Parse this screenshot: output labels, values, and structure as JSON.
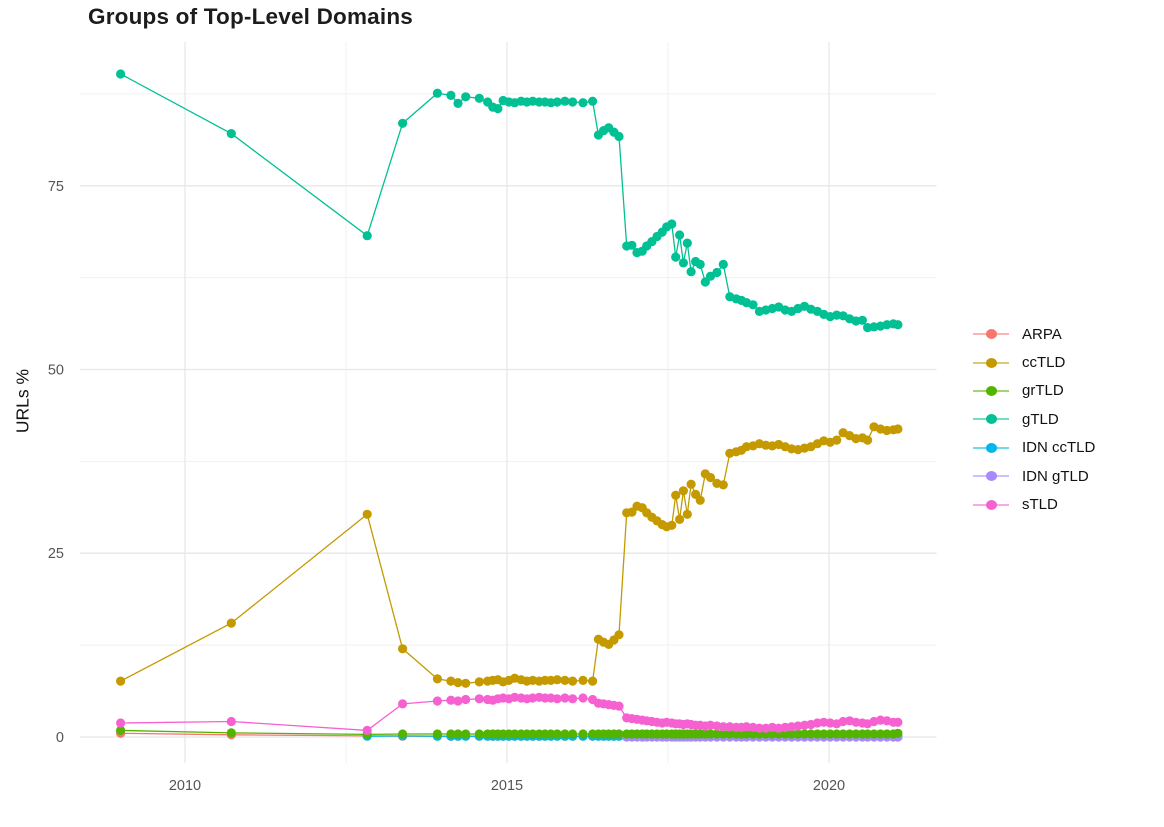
{
  "chart_data": {
    "type": "line",
    "title": "Groups of Top-Level Domains",
    "xlabel": "",
    "ylabel": "URLs %",
    "grid": true,
    "legend_position": "right",
    "x_domain": [
      2008.37,
      2021.67
    ],
    "y_domain": [
      -3.54,
      94.56
    ],
    "x_ticks": {
      "major": [
        2010,
        2015,
        2020
      ],
      "minor": [
        2012.5,
        2017.5
      ],
      "labels": [
        "2010",
        "2015",
        "2020"
      ]
    },
    "y_ticks": {
      "major": [
        0,
        25,
        50,
        75
      ],
      "minor": [
        12.5,
        37.5,
        62.5,
        87.5
      ],
      "labels": [
        "0",
        "25",
        "50",
        "75"
      ]
    },
    "x": [
      2009.0,
      2010.72,
      2012.83,
      2013.38,
      2013.92,
      2014.13,
      2014.24,
      2014.36,
      2014.57,
      2014.7,
      2014.78,
      2014.86,
      2014.94,
      2015.03,
      2015.12,
      2015.22,
      2015.31,
      2015.4,
      2015.5,
      2015.59,
      2015.68,
      2015.78,
      2015.9,
      2016.02,
      2016.18,
      2016.33,
      2016.42,
      2016.5,
      2016.58,
      2016.66,
      2016.74,
      2016.86,
      2016.94,
      2017.02,
      2017.1,
      2017.17,
      2017.25,
      2017.33,
      2017.41,
      2017.48,
      2017.56,
      2017.62,
      2017.68,
      2017.74,
      2017.8,
      2017.86,
      2017.93,
      2018.0,
      2018.08,
      2018.16,
      2018.26,
      2018.36,
      2018.46,
      2018.56,
      2018.64,
      2018.72,
      2018.82,
      2018.92,
      2019.02,
      2019.12,
      2019.22,
      2019.32,
      2019.42,
      2019.52,
      2019.62,
      2019.72,
      2019.82,
      2019.92,
      2020.02,
      2020.12,
      2020.22,
      2020.32,
      2020.42,
      2020.52,
      2020.6,
      2020.7,
      2020.8,
      2020.9,
      2021.0,
      2021.07
    ],
    "draw_order": [
      "ARPA",
      "IDN ccTLD",
      "IDN gTLD",
      "grTLD",
      "ccTLD",
      "gTLD",
      "sTLD"
    ],
    "series": [
      {
        "name": "ARPA",
        "color": "#F8766D",
        "y": [
          0.5,
          0.3,
          0.15,
          0.1,
          0.1,
          0.1,
          0.1,
          0.1,
          0.1,
          0.1,
          0.1,
          0.1,
          0.1,
          0.1,
          0.1,
          0.1,
          0.1,
          0.1,
          0.1,
          0.1,
          0.1,
          0.1,
          0.1,
          0.1,
          0.1,
          0.1,
          0.1,
          0.1,
          0.1,
          0.1,
          0.1,
          0.1,
          0.1,
          0.1,
          0.1,
          0.1,
          0.1,
          0.1,
          0.1,
          0.1,
          0.1,
          0.1,
          0.1,
          0.1,
          0.1,
          0.1,
          0.1,
          0.1,
          0.1,
          0.1,
          0.1,
          0.1,
          0.1,
          0.1,
          0.1,
          0.1,
          0.1,
          0.1,
          0.1,
          0.1,
          0.1,
          0.1,
          0.1,
          0.1,
          0.1,
          0.1,
          0.1,
          0.1,
          0.1,
          0.1,
          0.1,
          0.1,
          0.1,
          0.1,
          0.1,
          0.1,
          0.1,
          0.1,
          0.1,
          0.1
        ]
      },
      {
        "name": "ccTLD",
        "color": "#C49A00",
        "y": [
          7.6,
          15.5,
          30.3,
          12.0,
          7.9,
          7.6,
          7.4,
          7.3,
          7.5,
          7.6,
          7.7,
          7.8,
          7.5,
          7.7,
          8.0,
          7.8,
          7.6,
          7.7,
          7.6,
          7.7,
          7.7,
          7.8,
          7.7,
          7.6,
          7.7,
          7.6,
          13.3,
          12.9,
          12.6,
          13.2,
          13.9,
          30.5,
          30.6,
          31.4,
          31.2,
          30.5,
          29.9,
          29.4,
          28.9,
          28.6,
          28.8,
          32.9,
          29.6,
          33.5,
          30.3,
          34.4,
          33.0,
          32.2,
          35.8,
          35.3,
          34.5,
          34.3,
          38.6,
          38.8,
          39.0,
          39.5,
          39.6,
          39.9,
          39.7,
          39.6,
          39.8,
          39.5,
          39.2,
          39.1,
          39.3,
          39.5,
          39.9,
          40.3,
          40.1,
          40.4,
          41.4,
          41.0,
          40.6,
          40.7,
          40.4,
          42.2,
          41.9,
          41.7,
          41.8,
          41.9
        ]
      },
      {
        "name": "grTLD",
        "color": "#53B400",
        "y": [
          0.9,
          0.55,
          0.35,
          0.4,
          0.4,
          0.4,
          0.4,
          0.4,
          0.4,
          0.4,
          0.4,
          0.4,
          0.4,
          0.4,
          0.4,
          0.4,
          0.4,
          0.4,
          0.4,
          0.4,
          0.4,
          0.4,
          0.4,
          0.4,
          0.4,
          0.4,
          0.4,
          0.4,
          0.4,
          0.4,
          0.4,
          0.4,
          0.4,
          0.4,
          0.4,
          0.4,
          0.4,
          0.4,
          0.4,
          0.4,
          0.4,
          0.4,
          0.4,
          0.4,
          0.4,
          0.4,
          0.4,
          0.4,
          0.4,
          0.4,
          0.4,
          0.4,
          0.4,
          0.4,
          0.4,
          0.4,
          0.4,
          0.4,
          0.4,
          0.4,
          0.4,
          0.4,
          0.4,
          0.4,
          0.4,
          0.4,
          0.4,
          0.4,
          0.4,
          0.4,
          0.4,
          0.4,
          0.4,
          0.4,
          0.4,
          0.4,
          0.4,
          0.4,
          0.4,
          0.5
        ]
      },
      {
        "name": "gTLD",
        "color": "#00C094",
        "y": [
          90.2,
          82.1,
          68.2,
          83.5,
          87.6,
          87.3,
          86.2,
          87.1,
          86.9,
          86.4,
          85.7,
          85.5,
          86.6,
          86.4,
          86.3,
          86.5,
          86.4,
          86.5,
          86.4,
          86.4,
          86.3,
          86.4,
          86.5,
          86.4,
          86.3,
          86.5,
          81.9,
          82.5,
          82.9,
          82.3,
          81.7,
          66.8,
          66.9,
          65.9,
          66.1,
          66.8,
          67.4,
          68.1,
          68.7,
          69.4,
          69.8,
          65.3,
          68.3,
          64.5,
          67.2,
          63.3,
          64.7,
          64.3,
          61.9,
          62.7,
          63.2,
          64.3,
          59.9,
          59.6,
          59.4,
          59.1,
          58.8,
          57.9,
          58.1,
          58.3,
          58.5,
          58.1,
          57.9,
          58.3,
          58.6,
          58.2,
          57.9,
          57.5,
          57.2,
          57.4,
          57.3,
          56.9,
          56.6,
          56.7,
          55.7,
          55.8,
          55.9,
          56.1,
          56.2,
          56.1
        ]
      },
      {
        "name": "IDN ccTLD",
        "color": "#00B6EB",
        "y": [
          null,
          null,
          0.1,
          0.15,
          0.1,
          0.1,
          0.1,
          0.1,
          0.1,
          0.1,
          0.1,
          0.1,
          0.1,
          0.1,
          0.1,
          0.1,
          0.1,
          0.1,
          0.1,
          0.1,
          0.1,
          0.1,
          0.1,
          0.1,
          0.1,
          0.1,
          0.1,
          0.1,
          0.1,
          0.1,
          0.1,
          0.1,
          0.1,
          0.1,
          0.1,
          0.1,
          0.1,
          0.1,
          0.1,
          0.1,
          0.1,
          0.1,
          0.1,
          0.1,
          0.1,
          0.1,
          0.1,
          0.1,
          0.1,
          0.1,
          0.1,
          0.1,
          0.1,
          0.1,
          0.1,
          0.1,
          0.1,
          0.1,
          0.1,
          0.1,
          0.1,
          0.1,
          0.1,
          0.1,
          0.1,
          0.1,
          0.1,
          0.1,
          0.1,
          0.1,
          0.1,
          0.1,
          0.1,
          0.1,
          0.1,
          0.1,
          0.1,
          0.1,
          0.1,
          0.1
        ]
      },
      {
        "name": "IDN gTLD",
        "color": "#A58AFF",
        "y": [
          null,
          null,
          null,
          null,
          null,
          null,
          null,
          null,
          null,
          null,
          null,
          null,
          null,
          null,
          null,
          null,
          null,
          null,
          null,
          null,
          null,
          null,
          null,
          null,
          null,
          null,
          null,
          null,
          null,
          null,
          null,
          0.0,
          0.0,
          0.0,
          0.0,
          0.0,
          0.0,
          0.0,
          0.0,
          0.0,
          0.0,
          0.0,
          0.0,
          0.0,
          0.0,
          0.0,
          0.0,
          0.0,
          0.0,
          0.0,
          0.0,
          0.0,
          0.0,
          0.0,
          0.0,
          0.0,
          0.0,
          0.0,
          0.0,
          0.0,
          0.0,
          0.0,
          0.0,
          0.0,
          0.0,
          0.0,
          0.0,
          0.0,
          0.0,
          0.0,
          0.0,
          0.0,
          0.0,
          0.0,
          0.0,
          0.0,
          0.0,
          0.0,
          0.0,
          0.0
        ]
      },
      {
        "name": "sTLD",
        "color": "#F661D2",
        "y": [
          1.9,
          2.1,
          0.9,
          4.5,
          4.9,
          5.0,
          4.9,
          5.1,
          5.2,
          5.1,
          5.0,
          5.2,
          5.3,
          5.2,
          5.4,
          5.3,
          5.2,
          5.3,
          5.4,
          5.3,
          5.3,
          5.2,
          5.3,
          5.2,
          5.3,
          5.1,
          4.6,
          4.5,
          4.4,
          4.3,
          4.2,
          2.6,
          2.5,
          2.4,
          2.3,
          2.2,
          2.1,
          2.0,
          1.9,
          2.0,
          1.9,
          1.8,
          1.8,
          1.7,
          1.8,
          1.7,
          1.6,
          1.6,
          1.5,
          1.6,
          1.5,
          1.4,
          1.4,
          1.3,
          1.3,
          1.4,
          1.3,
          1.2,
          1.2,
          1.3,
          1.2,
          1.3,
          1.4,
          1.5,
          1.6,
          1.7,
          1.9,
          2.0,
          1.9,
          1.8,
          2.1,
          2.2,
          2.0,
          1.9,
          1.8,
          2.1,
          2.3,
          2.2,
          2.0,
          2.0
        ]
      }
    ]
  },
  "legend": {
    "items": [
      {
        "label": "ARPA",
        "color": "#F8766D"
      },
      {
        "label": "ccTLD",
        "color": "#C49A00"
      },
      {
        "label": "grTLD",
        "color": "#53B400"
      },
      {
        "label": "gTLD",
        "color": "#00C094"
      },
      {
        "label": "IDN ccTLD",
        "color": "#00B6EB"
      },
      {
        "label": "IDN gTLD",
        "color": "#A58AFF"
      },
      {
        "label": "sTLD",
        "color": "#F661D2"
      }
    ]
  },
  "colors": {
    "background": "#FFFFFF",
    "grid_major": "#E7E7E7",
    "grid_minor": "#F1F1F1",
    "axis_text": "#555555",
    "title_text": "#1C1C1C"
  }
}
